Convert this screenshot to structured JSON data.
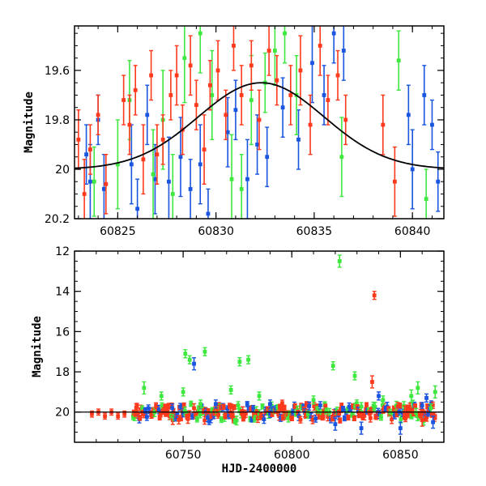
{
  "colors": {
    "blue": "#1a55e0",
    "green": "#3ee83e",
    "red": "#ff3a1c",
    "model": "#000000",
    "axis": "#000000"
  },
  "chart_data": [
    {
      "type": "scatter",
      "panel": "top",
      "xlabel": "",
      "ylabel": "Magnitude",
      "xlim": [
        60822.8,
        60841.6
      ],
      "ylim": [
        20.2,
        19.42
      ],
      "y_inverted": true,
      "xticks": [
        60825,
        60830,
        60835,
        60840
      ],
      "xtick_labels": [
        "60825",
        "60830",
        "60835",
        "60840"
      ],
      "yticks": [
        19.6,
        19.8,
        20,
        20.2
      ],
      "ytick_labels": [
        "19.6",
        "19.8",
        "20",
        "20.2"
      ],
      "model_curve": {
        "type": "gaussian",
        "baseline": 20.0,
        "amplitude": -0.35,
        "center": 60832.3,
        "sigma": 3.2
      },
      "series": [
        {
          "color_key": "blue",
          "points": [
            [
              60823.4,
              19.94,
              0.12
            ],
            [
              60823.6,
              20.05,
              0.15
            ],
            [
              60824.0,
              19.8,
              0.1
            ],
            [
              60824.3,
              20.08,
              0.14
            ],
            [
              60825.7,
              19.98,
              0.16
            ],
            [
              60826.0,
              20.16,
              0.12
            ],
            [
              60826.5,
              19.78,
              0.12
            ],
            [
              60826.9,
              20.04,
              0.14
            ],
            [
              60827.6,
              20.05,
              0.18
            ],
            [
              60828.2,
              19.95,
              0.16
            ],
            [
              60828.7,
              20.08,
              0.12
            ],
            [
              60829.2,
              19.98,
              0.16
            ],
            [
              60829.6,
              20.18,
              0.1
            ],
            [
              60830.6,
              19.85,
              0.14
            ],
            [
              60831.0,
              19.76,
              0.12
            ],
            [
              60831.6,
              20.04,
              0.16
            ],
            [
              60832.1,
              19.9,
              0.12
            ],
            [
              60832.6,
              19.95,
              0.12
            ],
            [
              60833.4,
              19.75,
              0.12
            ],
            [
              60834.2,
              19.88,
              0.12
            ],
            [
              60834.9,
              19.57,
              0.16
            ],
            [
              60835.5,
              19.7,
              0.12
            ],
            [
              60836.0,
              19.45,
              0.12
            ],
            [
              60836.5,
              19.52,
              0.12
            ],
            [
              60839.8,
              19.78,
              0.12
            ],
            [
              60840.0,
              20.0,
              0.16
            ],
            [
              60840.6,
              19.7,
              0.12
            ],
            [
              60841.0,
              19.82,
              0.1
            ],
            [
              60841.3,
              20.05,
              0.12
            ]
          ]
        },
        {
          "color_key": "green",
          "points": [
            [
              60823.8,
              20.05,
              0.14
            ],
            [
              60825.0,
              19.98,
              0.18
            ],
            [
              60825.6,
              19.72,
              0.16
            ],
            [
              60826.8,
              20.02,
              0.18
            ],
            [
              60827.3,
              19.8,
              0.2
            ],
            [
              60827.8,
              20.1,
              0.16
            ],
            [
              60828.4,
              19.55,
              0.18
            ],
            [
              60829.2,
              19.45,
              0.16
            ],
            [
              60829.8,
              19.7,
              0.18
            ],
            [
              60830.8,
              20.04,
              0.18
            ],
            [
              60831.3,
              20.08,
              0.14
            ],
            [
              60831.8,
              19.72,
              0.18
            ],
            [
              60832.5,
              19.65,
              0.12
            ],
            [
              60833.0,
              19.52,
              0.14
            ],
            [
              60833.5,
              19.45,
              0.12
            ],
            [
              60834.1,
              19.7,
              0.16
            ],
            [
              60836.4,
              19.95,
              0.16
            ],
            [
              60839.3,
              19.56,
              0.12
            ],
            [
              60840.7,
              20.12,
              0.12
            ]
          ]
        },
        {
          "color_key": "red",
          "points": [
            [
              60823.0,
              19.88,
              0.12
            ],
            [
              60823.3,
              20.1,
              0.14
            ],
            [
              60823.6,
              19.92,
              0.1
            ],
            [
              60824.0,
              19.78,
              0.08
            ],
            [
              60824.4,
              20.06,
              0.12
            ],
            [
              60825.3,
              19.72,
              0.1
            ],
            [
              60825.6,
              19.82,
              0.12
            ],
            [
              60825.9,
              19.68,
              0.1
            ],
            [
              60826.3,
              19.96,
              0.14
            ],
            [
              60826.7,
              19.62,
              0.1
            ],
            [
              60827.0,
              19.94,
              0.12
            ],
            [
              60827.3,
              19.88,
              0.1
            ],
            [
              60827.7,
              19.7,
              0.1
            ],
            [
              60828.0,
              19.62,
              0.12
            ],
            [
              60828.3,
              19.84,
              0.1
            ],
            [
              60828.7,
              19.58,
              0.12
            ],
            [
              60829.0,
              19.74,
              0.1
            ],
            [
              60829.4,
              19.92,
              0.14
            ],
            [
              60829.7,
              19.66,
              0.1
            ],
            [
              60830.1,
              19.6,
              0.12
            ],
            [
              60830.5,
              19.78,
              0.1
            ],
            [
              60830.9,
              19.5,
              0.1
            ],
            [
              60831.3,
              19.7,
              0.12
            ],
            [
              60831.8,
              19.58,
              0.1
            ],
            [
              60832.2,
              19.8,
              0.12
            ],
            [
              60832.7,
              19.52,
              0.1
            ],
            [
              60833.1,
              19.64,
              0.1
            ],
            [
              60833.8,
              19.7,
              0.12
            ],
            [
              60834.3,
              19.6,
              0.14
            ],
            [
              60834.8,
              19.82,
              0.12
            ],
            [
              60835.3,
              19.5,
              0.12
            ],
            [
              60835.7,
              19.72,
              0.1
            ],
            [
              60836.2,
              19.62,
              0.1
            ],
            [
              60836.6,
              19.8,
              0.1
            ],
            [
              60838.5,
              19.82,
              0.12
            ],
            [
              60839.1,
              20.05,
              0.14
            ]
          ]
        }
      ]
    },
    {
      "type": "scatter",
      "panel": "bottom",
      "xlabel": "HJD-2400000",
      "ylabel": "Magnitude",
      "xlim": [
        60700,
        60870
      ],
      "ylim": [
        21.5,
        12
      ],
      "y_inverted": true,
      "xticks": [
        60750,
        60800,
        60850
      ],
      "xtick_labels": [
        "60750",
        "60800",
        "60850"
      ],
      "yticks": [
        12,
        14,
        16,
        18,
        20
      ],
      "ytick_labels": [
        "12",
        "14",
        "16",
        "18",
        "20"
      ],
      "model_level": 20.0,
      "dense_band": {
        "x_start": 60727,
        "x_end": 60866,
        "center": 20.0,
        "spread": 0.35,
        "noise_seed": 7
      },
      "series": [
        {
          "color_key": "blue",
          "points": [
            [
              60755,
              17.6,
              0.3
            ],
            [
              60745,
              19.8,
              0.2
            ],
            [
              60765,
              19.6,
              0.2
            ],
            [
              60790,
              19.6,
              0.2
            ],
            [
              60808,
              19.7,
              0.2
            ],
            [
              60820,
              20.6,
              0.3
            ],
            [
              60832,
              20.8,
              0.3
            ],
            [
              60840,
              19.2,
              0.2
            ],
            [
              60850,
              20.8,
              0.3
            ],
            [
              60862,
              19.3,
              0.2
            ],
            [
              60865,
              20.5,
              0.3
            ]
          ]
        },
        {
          "color_key": "green",
          "points": [
            [
              60822,
              12.5,
              0.3
            ],
            [
              60751,
              17.1,
              0.2
            ],
            [
              60753,
              17.4,
              0.2
            ],
            [
              60760,
              17.0,
              0.2
            ],
            [
              60776,
              17.5,
              0.2
            ],
            [
              60780,
              17.4,
              0.2
            ],
            [
              60732,
              18.8,
              0.3
            ],
            [
              60740,
              19.2,
              0.2
            ],
            [
              60750,
              19.0,
              0.2
            ],
            [
              60758,
              19.6,
              0.2
            ],
            [
              60772,
              18.9,
              0.2
            ],
            [
              60785,
              19.2,
              0.2
            ],
            [
              60810,
              19.4,
              0.2
            ],
            [
              60819,
              17.7,
              0.2
            ],
            [
              60829,
              18.2,
              0.2
            ],
            [
              60842,
              19.4,
              0.2
            ],
            [
              60855,
              19.2,
              0.3
            ],
            [
              60858,
              18.8,
              0.3
            ],
            [
              60864,
              19.8,
              0.2
            ],
            [
              60866,
              19.0,
              0.3
            ]
          ]
        },
        {
          "color_key": "red",
          "points": [
            [
              60838,
              14.2,
              0.2
            ],
            [
              60708,
              20.1,
              0.15
            ],
            [
              60711,
              20.0,
              0.15
            ],
            [
              60714,
              20.2,
              0.15
            ],
            [
              60717,
              20.0,
              0.15
            ],
            [
              60720,
              20.2,
              0.15
            ],
            [
              60723,
              20.1,
              0.15
            ],
            [
              60837,
              18.5,
              0.3
            ],
            [
              60852,
              20.0,
              0.3
            ],
            [
              60860,
              20.4,
              0.3
            ]
          ]
        }
      ]
    }
  ]
}
